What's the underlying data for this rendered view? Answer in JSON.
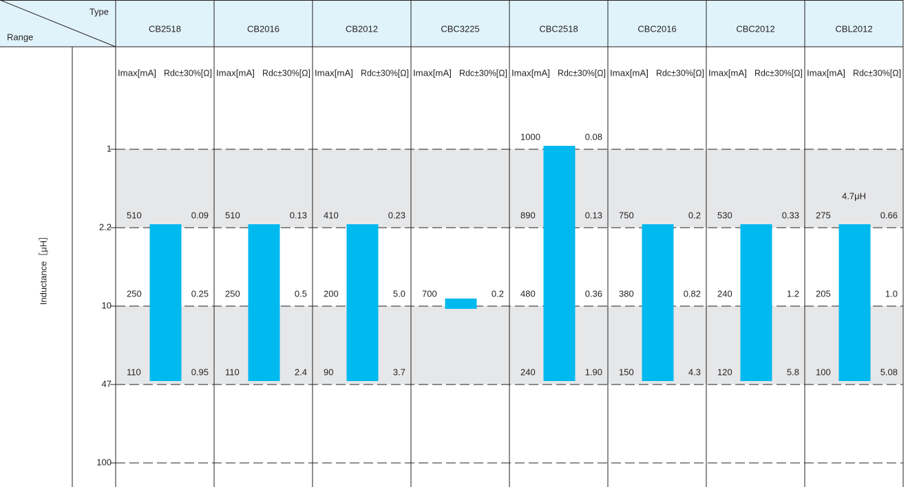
{
  "chart_data": {
    "type": "range",
    "corner_top": "Type",
    "corner_bottom": "Range",
    "y_label": "Inductance［μH］",
    "sub_imax": "Imax[mA]",
    "sub_rdc": "Rdc±30%[Ω]",
    "levels": [
      1,
      2.2,
      10,
      47,
      100
    ],
    "shaded": [
      [
        1,
        2.2
      ],
      [
        10,
        47
      ]
    ],
    "color": "#00b9ef",
    "columns": [
      {
        "name": "CB2518",
        "range": [
          2.2,
          47
        ],
        "rows": [
          {
            "level": 2.2,
            "imax": "510",
            "rdc": "0.09"
          },
          {
            "level": 10,
            "imax": "250",
            "rdc": "0.25"
          },
          {
            "level": 47,
            "imax": "110",
            "rdc": "0.95"
          }
        ]
      },
      {
        "name": "CB2016",
        "range": [
          2.2,
          47
        ],
        "rows": [
          {
            "level": 2.2,
            "imax": "510",
            "rdc": "0.13"
          },
          {
            "level": 10,
            "imax": "250",
            "rdc": "0.5"
          },
          {
            "level": 47,
            "imax": "110",
            "rdc": "2.4"
          }
        ]
      },
      {
        "name": "CB2012",
        "range": [
          2.2,
          47
        ],
        "rows": [
          {
            "level": 2.2,
            "imax": "410",
            "rdc": "0.23"
          },
          {
            "level": 10,
            "imax": "200",
            "rdc": "5.0"
          },
          {
            "level": 47,
            "imax": "90",
            "rdc": "3.7"
          }
        ]
      },
      {
        "name": "CBC3225",
        "range": [
          10,
          10
        ],
        "rows": [
          {
            "level": 10,
            "imax": "700",
            "rdc": "0.2"
          }
        ]
      },
      {
        "name": "CBC2518",
        "range": [
          1,
          47
        ],
        "rows": [
          {
            "level": 1,
            "imax": "1000",
            "rdc": "0.08"
          },
          {
            "level": 2.2,
            "imax": "890",
            "rdc": "0.13"
          },
          {
            "level": 10,
            "imax": "480",
            "rdc": "0.36"
          },
          {
            "level": 47,
            "imax": "240",
            "rdc": "1.90"
          }
        ]
      },
      {
        "name": "CBC2016",
        "range": [
          2.2,
          47
        ],
        "rows": [
          {
            "level": 2.2,
            "imax": "750",
            "rdc": "0.2"
          },
          {
            "level": 10,
            "imax": "380",
            "rdc": "0.82"
          },
          {
            "level": 47,
            "imax": "150",
            "rdc": "4.3"
          }
        ]
      },
      {
        "name": "CBC2012",
        "range": [
          2.2,
          47
        ],
        "rows": [
          {
            "level": 2.2,
            "imax": "530",
            "rdc": "0.33"
          },
          {
            "level": 10,
            "imax": "240",
            "rdc": "1.2"
          },
          {
            "level": 47,
            "imax": "120",
            "rdc": "5.8"
          }
        ]
      },
      {
        "name": "CBL2012",
        "range": [
          2.2,
          47
        ],
        "note": "4.7μH",
        "rows": [
          {
            "level": 2.2,
            "imax": "275",
            "rdc": "0.66"
          },
          {
            "level": 10,
            "imax": "205",
            "rdc": "1.0"
          },
          {
            "level": 47,
            "imax": "100",
            "rdc": "5.08"
          }
        ]
      }
    ]
  }
}
